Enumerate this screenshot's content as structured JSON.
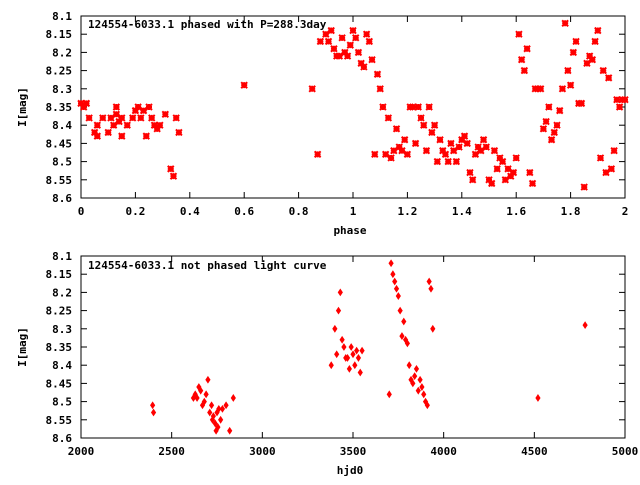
{
  "chart_data": [
    {
      "type": "scatter",
      "title": "124554-6033.1 phased with P=288.3day",
      "xlabel": "phase",
      "ylabel": "I[mag]",
      "xlim": [
        0,
        2
      ],
      "ylim": [
        8.6,
        8.1
      ],
      "y_inverted": true,
      "xticks": [
        "0",
        "0.2",
        "0.4",
        "0.6",
        "0.8",
        "1",
        "1.2",
        "1.4",
        "1.6",
        "1.8",
        "2"
      ],
      "yticks": [
        "8.1",
        "8.15",
        "8.2",
        "8.25",
        "8.3",
        "8.35",
        "8.4",
        "8.45",
        "8.5",
        "8.55",
        "8.6"
      ],
      "grid": false,
      "marker_color": "#ff0000",
      "x": [
        0.0,
        0.01,
        0.02,
        0.03,
        0.05,
        0.06,
        0.06,
        0.08,
        0.1,
        0.11,
        0.12,
        0.13,
        0.13,
        0.14,
        0.15,
        0.15,
        0.17,
        0.19,
        0.2,
        0.21,
        0.22,
        0.23,
        0.24,
        0.25,
        0.26,
        0.27,
        0.28,
        0.29,
        0.31,
        0.33,
        0.34,
        0.35,
        0.36,
        0.6,
        0.85,
        0.87,
        0.88,
        0.9,
        0.91,
        0.92,
        0.93,
        0.94,
        0.95,
        0.96,
        0.97,
        0.98,
        0.99,
        1.0,
        1.01,
        1.02,
        1.03,
        1.04,
        1.05,
        1.06,
        1.07,
        1.08,
        1.09,
        1.1,
        1.11,
        1.12,
        1.13,
        1.14,
        1.15,
        1.16,
        1.17,
        1.18,
        1.19,
        1.2,
        1.21,
        1.22,
        1.23,
        1.24,
        1.25,
        1.26,
        1.27,
        1.28,
        1.29,
        1.3,
        1.31,
        1.32,
        1.33,
        1.34,
        1.35,
        1.36,
        1.37,
        1.38,
        1.39,
        1.4,
        1.41,
        1.42,
        1.43,
        1.44,
        1.45,
        1.46,
        1.47,
        1.48,
        1.49,
        1.5,
        1.51,
        1.52,
        1.53,
        1.54,
        1.55,
        1.56,
        1.57,
        1.58,
        1.59,
        1.6,
        1.61,
        1.62,
        1.63,
        1.64,
        1.65,
        1.66,
        1.67,
        1.68,
        1.69,
        1.7,
        1.71,
        1.72,
        1.73,
        1.74,
        1.75,
        1.76,
        1.77,
        1.78,
        1.79,
        1.8,
        1.81,
        1.82,
        1.83,
        1.84,
        1.85,
        1.86,
        1.87,
        1.88,
        1.89,
        1.9,
        1.91,
        1.92,
        1.93,
        1.94,
        1.95,
        1.96,
        1.97,
        1.98,
        1.99,
        2.0
      ],
      "y": [
        8.34,
        8.35,
        8.34,
        8.38,
        8.42,
        8.43,
        8.4,
        8.38,
        8.42,
        8.38,
        8.4,
        8.35,
        8.37,
        8.39,
        8.38,
        8.43,
        8.4,
        8.38,
        8.36,
        8.35,
        8.38,
        8.36,
        8.43,
        8.35,
        8.38,
        8.4,
        8.41,
        8.4,
        8.37,
        8.52,
        8.54,
        8.38,
        8.42,
        8.29,
        8.3,
        8.48,
        8.17,
        8.15,
        8.17,
        8.14,
        8.19,
        8.21,
        8.21,
        8.16,
        8.2,
        8.21,
        8.18,
        8.14,
        8.16,
        8.2,
        8.23,
        8.24,
        8.15,
        8.17,
        8.22,
        8.48,
        8.26,
        8.3,
        8.35,
        8.48,
        8.38,
        8.49,
        8.47,
        8.41,
        8.46,
        8.47,
        8.44,
        8.48,
        8.35,
        8.35,
        8.45,
        8.35,
        8.38,
        8.4,
        8.47,
        8.35,
        8.42,
        8.4,
        8.5,
        8.44,
        8.47,
        8.48,
        8.5,
        8.45,
        8.47,
        8.5,
        8.46,
        8.44,
        8.43,
        8.45,
        8.53,
        8.55,
        8.48,
        8.46,
        8.47,
        8.44,
        8.46,
        8.55,
        8.56,
        8.47,
        8.52,
        8.49,
        8.5,
        8.55,
        8.52,
        8.54,
        8.53,
        8.49,
        8.15,
        8.22,
        8.25,
        8.19,
        8.53,
        8.56,
        8.3,
        8.3,
        8.3,
        8.41,
        8.39,
        8.35,
        8.44,
        8.42,
        8.4,
        8.36,
        8.3,
        8.12,
        8.25,
        8.29,
        8.2,
        8.17,
        8.34,
        8.34,
        8.57,
        8.23,
        8.21,
        8.22,
        8.17,
        8.14,
        8.49,
        8.25,
        8.53,
        8.27,
        8.52,
        8.47,
        8.33,
        8.35,
        8.33,
        8.33
      ],
      "xlim_note": "",
      "legend": "none"
    },
    {
      "type": "scatter",
      "title": "124554-6033.1 not phased light curve",
      "xlabel": "hjd0",
      "ylabel": "I[mag]",
      "xlim": [
        2000,
        5000
      ],
      "ylim": [
        8.6,
        8.1
      ],
      "y_inverted": true,
      "xticks": [
        "2000",
        "2500",
        "3000",
        "3500",
        "4000",
        "4500",
        "5000"
      ],
      "yticks": [
        "8.1",
        "8.15",
        "8.2",
        "8.25",
        "8.3",
        "8.35",
        "8.4",
        "8.45",
        "8.5",
        "8.55",
        "8.6"
      ],
      "grid": false,
      "marker_color": "#ff0000",
      "x": [
        2395,
        2400,
        2620,
        2630,
        2640,
        2650,
        2660,
        2670,
        2680,
        2690,
        2700,
        2710,
        2720,
        2725,
        2730,
        2740,
        2745,
        2750,
        2755,
        2760,
        2770,
        2780,
        2800,
        2820,
        2840,
        3380,
        3400,
        3410,
        3420,
        3430,
        3440,
        3450,
        3460,
        3470,
        3480,
        3490,
        3500,
        3510,
        3520,
        3530,
        3540,
        3550,
        3700,
        3710,
        3720,
        3730,
        3740,
        3750,
        3760,
        3770,
        3780,
        3790,
        3800,
        3810,
        3820,
        3830,
        3840,
        3850,
        3860,
        3870,
        3880,
        3890,
        3900,
        3910,
        3920,
        3930,
        3940,
        4520,
        4780
      ],
      "y": [
        8.51,
        8.53,
        8.49,
        8.48,
        8.49,
        8.46,
        8.47,
        8.51,
        8.5,
        8.48,
        8.44,
        8.53,
        8.51,
        8.55,
        8.54,
        8.56,
        8.58,
        8.53,
        8.57,
        8.52,
        8.55,
        8.52,
        8.51,
        8.58,
        8.49,
        8.4,
        8.3,
        8.37,
        8.25,
        8.2,
        8.33,
        8.35,
        8.38,
        8.38,
        8.41,
        8.35,
        8.37,
        8.4,
        8.36,
        8.38,
        8.42,
        8.36,
        8.48,
        8.12,
        8.15,
        8.17,
        8.19,
        8.21,
        8.25,
        8.32,
        8.28,
        8.33,
        8.34,
        8.4,
        8.44,
        8.45,
        8.43,
        8.41,
        8.47,
        8.44,
        8.46,
        8.48,
        8.5,
        8.51,
        8.17,
        8.19,
        8.3,
        8.49,
        8.29
      ],
      "legend": "none"
    }
  ]
}
